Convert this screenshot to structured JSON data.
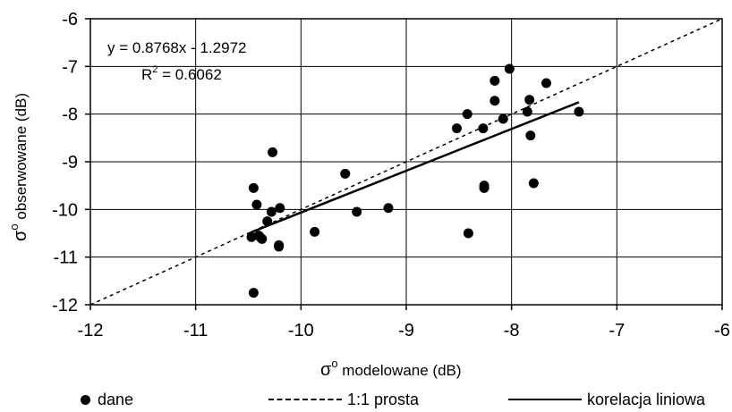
{
  "chart_data": {
    "type": "scatter",
    "xlim": [
      -12,
      -6
    ],
    "ylim": [
      -12,
      -6
    ],
    "x_ticks": [
      -12,
      -11,
      -10,
      -9,
      -8,
      -7,
      -6
    ],
    "y_ticks": [
      -6,
      -7,
      -8,
      -9,
      -10,
      -11,
      -12
    ],
    "x_tick_labels": [
      "-12",
      "-11",
      "-10",
      "-9",
      "-8",
      "-7",
      "-6"
    ],
    "y_tick_labels": [
      "-6",
      "-7",
      "-8",
      "-9",
      "-10",
      "-11",
      "-12"
    ],
    "grid": true,
    "xlabel": {
      "symbol": "σ",
      "sup": "o",
      "text": " modelowane (dB)"
    },
    "ylabel": {
      "symbol": "σ",
      "sup": "o",
      "text": " obserwowane (dB)"
    },
    "equation": {
      "line1": "y = 0.8768x - 1.2972",
      "r2_prefix": "R",
      "r2_sup": "2",
      "r2_value": " = 0.6062"
    },
    "legend_position": "bottom",
    "legend": {
      "points": "dane",
      "identity": "1:1 prosta",
      "fit": "korelacja liniowa"
    },
    "series": [
      {
        "name": "dane",
        "style": "points",
        "x": [
          -10.45,
          -10.42,
          -10.4,
          -10.37,
          -10.47,
          -10.38,
          -10.32,
          -10.28,
          -10.27,
          -10.21,
          -10.21,
          -10.2,
          -10.45,
          -9.87,
          -9.58,
          -9.47,
          -9.17,
          -8.52,
          -8.42,
          -8.41,
          -8.27,
          -8.26,
          -8.26,
          -8.16,
          -8.16,
          -8.08,
          -8.02,
          -7.85,
          -7.83,
          -7.82,
          -7.79,
          -7.67,
          -7.36
        ],
        "y": [
          -9.55,
          -9.9,
          -10.55,
          -10.62,
          -10.58,
          -10.6,
          -10.25,
          -10.05,
          -8.8,
          -10.75,
          -10.78,
          -9.97,
          -11.75,
          -10.47,
          -9.25,
          -10.05,
          -9.97,
          -8.3,
          -8.0,
          -10.5,
          -8.3,
          -9.5,
          -9.55,
          -7.3,
          -7.72,
          -8.1,
          -7.05,
          -7.95,
          -7.7,
          -8.45,
          -9.45,
          -7.35,
          -7.95
        ]
      },
      {
        "name": "1:1 prosta",
        "style": "dashed",
        "x": [
          -12,
          -6
        ],
        "y": [
          -12,
          -6
        ]
      },
      {
        "name": "korelacja liniowa",
        "style": "solid",
        "x": [
          -10.48,
          -7.36
        ],
        "y": [
          -10.4858,
          -7.7503
        ]
      }
    ]
  }
}
